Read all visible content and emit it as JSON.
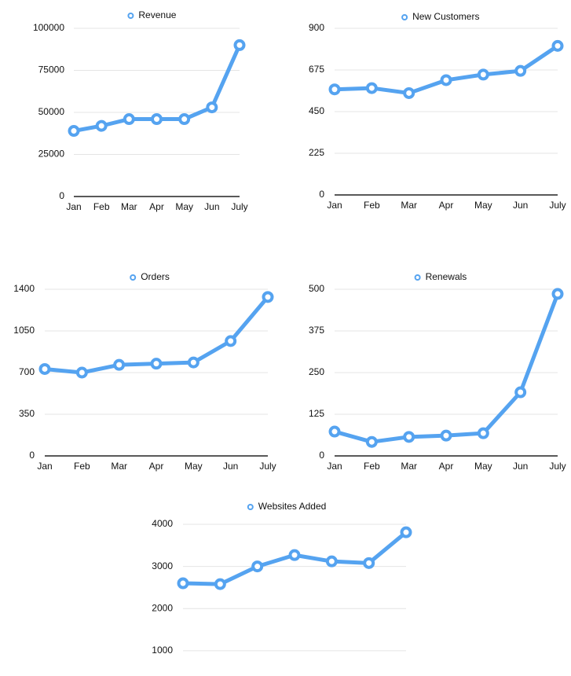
{
  "chart_data": [
    {
      "type": "line",
      "categories": [
        "Jan",
        "Feb",
        "Mar",
        "Apr",
        "May",
        "Jun",
        "July"
      ],
      "series": [
        {
          "name": "Revenue",
          "color": "#55a3f0",
          "values": [
            39000,
            42000,
            46000,
            46000,
            46000,
            53000,
            90000
          ]
        }
      ],
      "ylim": [
        0,
        100000
      ],
      "yticks": [
        0,
        25000,
        50000,
        75000,
        100000
      ],
      "grid": true
    },
    {
      "type": "line",
      "categories": [
        "Jan",
        "Feb",
        "Mar",
        "Apr",
        "May",
        "Jun",
        "July"
      ],
      "series": [
        {
          "name": "New Customers",
          "color": "#55a3f0",
          "values": [
            570,
            577,
            550,
            620,
            650,
            670,
            805
          ]
        }
      ],
      "ylim": [
        0,
        900
      ],
      "yticks": [
        0,
        225,
        450,
        675,
        900
      ],
      "grid": true
    },
    {
      "type": "line",
      "categories": [
        "Jan",
        "Feb",
        "Mar",
        "Apr",
        "May",
        "Jun",
        "July"
      ],
      "series": [
        {
          "name": "Orders",
          "color": "#55a3f0",
          "values": [
            730,
            700,
            765,
            775,
            785,
            965,
            1335
          ]
        }
      ],
      "ylim": [
        0,
        1400
      ],
      "yticks": [
        0,
        350,
        700,
        1050,
        1400
      ],
      "grid": true
    },
    {
      "type": "line",
      "categories": [
        "Jan",
        "Feb",
        "Mar",
        "Apr",
        "May",
        "Jun",
        "July"
      ],
      "series": [
        {
          "name": "Renewals",
          "color": "#55a3f0",
          "values": [
            73,
            42,
            57,
            61,
            68,
            191,
            486
          ]
        }
      ],
      "ylim": [
        0,
        500
      ],
      "yticks": [
        0,
        125,
        250,
        375,
        500
      ],
      "grid": true
    },
    {
      "type": "line",
      "series": [
        {
          "name": "Websites Added",
          "color": "#55a3f0",
          "values": [
            2600,
            2580,
            3000,
            3270,
            3120,
            3080,
            3810
          ]
        }
      ],
      "ylim": [
        400,
        4000
      ],
      "yticks": [
        1000,
        2000,
        3000,
        4000
      ],
      "grid": true
    }
  ]
}
